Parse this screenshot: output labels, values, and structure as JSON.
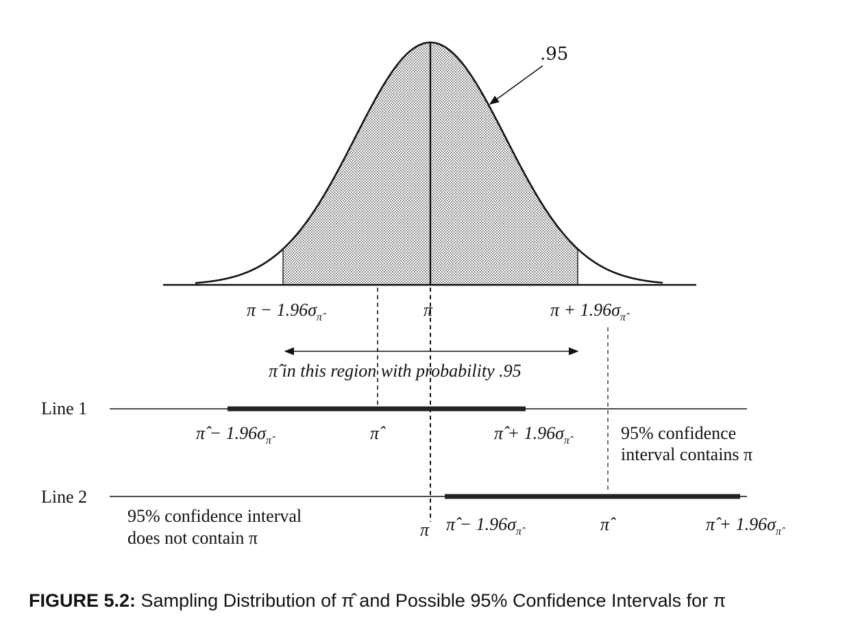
{
  "distribution": {
    "area_label": ".95",
    "left_bound_label": {
      "base": "π − 1.96σ",
      "sub": "π̂"
    },
    "center_label": "π",
    "right_bound_label": {
      "base": "π + 1.96σ",
      "sub": "π̂"
    },
    "region_label": "π̂ in this region with probability .95"
  },
  "lines": [
    {
      "name": "Line 1",
      "lower_label": {
        "base": "π̂ − 1.96σ",
        "sub": "π̂"
      },
      "estimate_label": "π̂",
      "upper_label": {
        "base": "π̂ + 1.96σ",
        "sub": "π̂"
      },
      "note": [
        "95% confidence",
        "interval contains π"
      ]
    },
    {
      "name": "Line 2",
      "lower_label": {
        "base": "π̂ − 1.96σ",
        "sub": "π̂"
      },
      "estimate_label": "π̂",
      "upper_label": {
        "base": "π̂ + 1.96σ",
        "sub": "π̂"
      },
      "pi_mark_label": "π",
      "note": [
        "95% confidence interval",
        "does not contain π"
      ]
    }
  ],
  "caption": {
    "bold": "FIGURE 5.2:",
    "text": " Sampling Distribution of π̂ and Possible 95% Confidence Intervals for π"
  }
}
